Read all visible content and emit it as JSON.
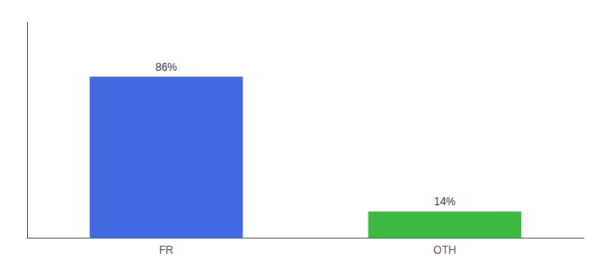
{
  "chart_data": {
    "type": "bar",
    "categories": [
      "FR",
      "OTH"
    ],
    "values": [
      86,
      14
    ],
    "value_labels": [
      "86%",
      "14%"
    ],
    "colors": [
      "#4169E1",
      "#3CB943"
    ],
    "ylim": [
      0,
      115
    ],
    "data_labels": true,
    "grid": false,
    "tick_labels": "x"
  }
}
